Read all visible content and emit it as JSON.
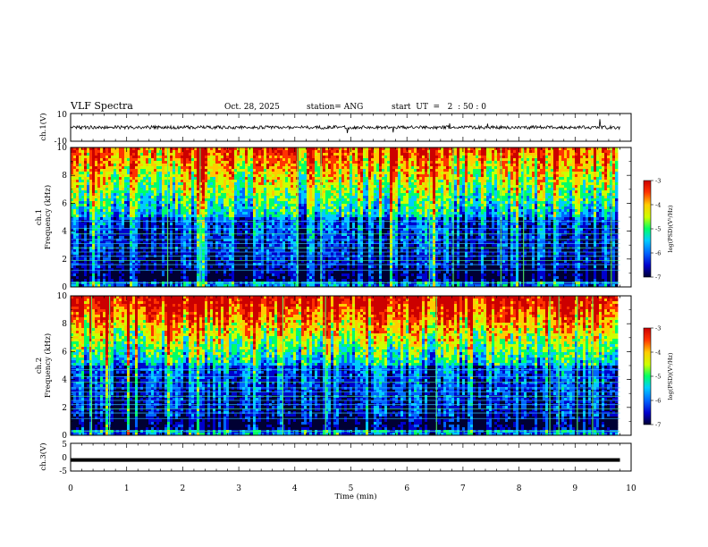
{
  "header": {
    "title": "VLF Spectra",
    "date": "Oct. 28, 2025",
    "station": "station= ANG",
    "start": "start  UT  =   2  : 50 : 0"
  },
  "colors": {
    "spectrogram_scale": [
      "#000033",
      "#0000cc",
      "#0066ff",
      "#00ccff",
      "#00ff66",
      "#ccff00",
      "#ffcc00",
      "#ff3300",
      "#cc0000"
    ],
    "waveform": "#000000"
  },
  "chart_data": [
    {
      "type": "line",
      "name": "ch1-waveform",
      "ylabel": "ch.1(V)",
      "ylim": [
        -10,
        10
      ],
      "yticks": [
        "10",
        "-10"
      ],
      "x": [
        0,
        1,
        2,
        3,
        4,
        5,
        6,
        7,
        8,
        9,
        9.8
      ],
      "y": [
        0,
        0,
        0,
        0,
        0,
        0,
        0,
        0,
        0,
        0,
        0
      ]
    },
    {
      "type": "heatmap",
      "name": "ch1-spectrogram",
      "ylabel": "ch.1\nFrequency (kHz)",
      "ylim": [
        0,
        10
      ],
      "yticks": [
        "0",
        "2",
        "4",
        "6",
        "8",
        "10"
      ],
      "colorbar": {
        "label": "log(PSD)(V²/Hz)",
        "range": [
          -7,
          -3
        ],
        "ticks": [
          "-3",
          "-4",
          "-5",
          "-6",
          "-7"
        ]
      }
    },
    {
      "type": "heatmap",
      "name": "ch2-spectrogram",
      "ylabel": "ch.2\nFrequency (kHz)",
      "ylim": [
        0,
        10
      ],
      "yticks": [
        "0",
        "2",
        "4",
        "6",
        "8",
        "10"
      ],
      "colorbar": {
        "label": "log(PSD)(V²/Hz)",
        "range": [
          -7,
          -3
        ],
        "ticks": [
          "-3",
          "-4",
          "-5",
          "-6",
          "-7"
        ]
      }
    },
    {
      "type": "line",
      "name": "ch3-waveform",
      "ylabel": "ch.3(V)",
      "ylim": [
        -5,
        5
      ],
      "yticks": [
        "5",
        "0",
        "-5"
      ],
      "x": [
        0,
        9.8
      ],
      "y": [
        -1,
        -1
      ]
    }
  ],
  "xaxis": {
    "label": "Time (min)",
    "range": [
      0,
      10
    ],
    "ticks": [
      "0",
      "1",
      "2",
      "3",
      "4",
      "5",
      "6",
      "7",
      "8",
      "9",
      "10"
    ]
  }
}
